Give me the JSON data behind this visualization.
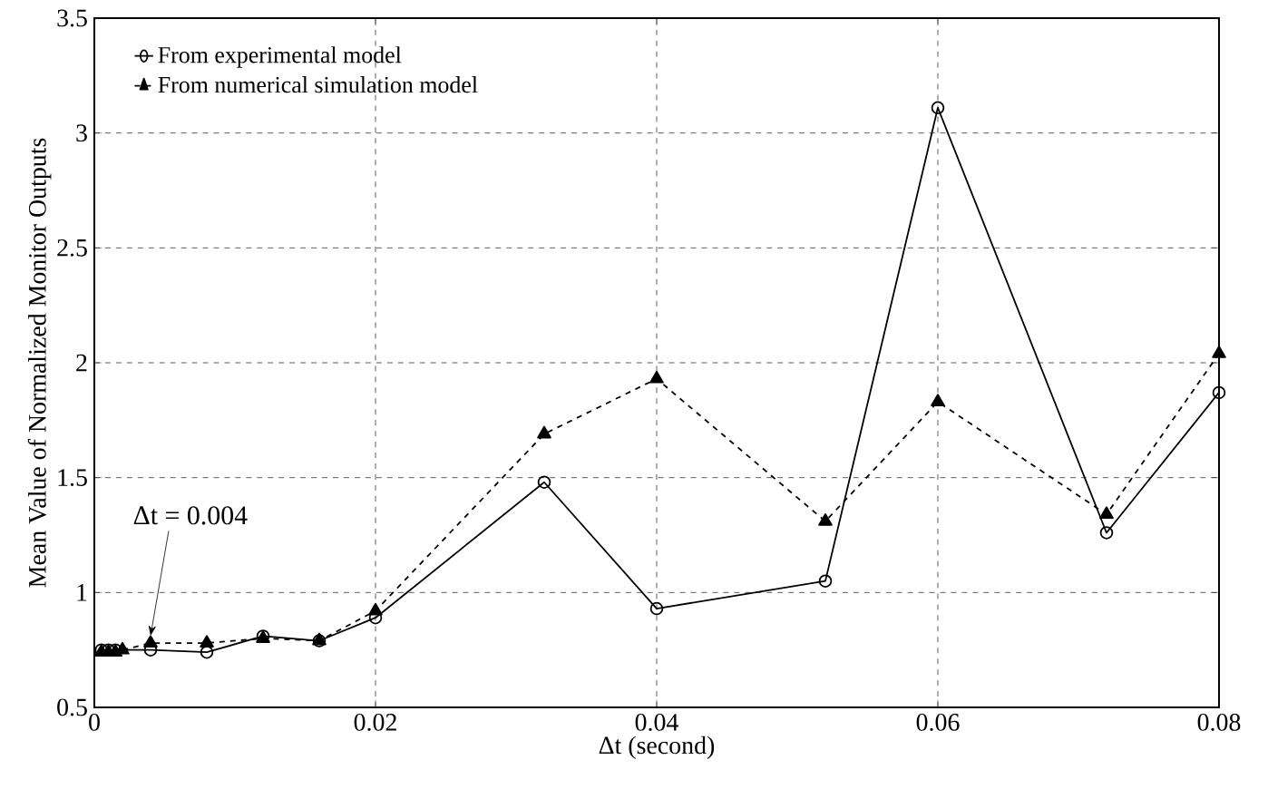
{
  "chart_data": {
    "type": "line",
    "xlabel": "Δt (second)",
    "ylabel": "Mean Value of Normalized Monitor Outputs",
    "xlim": [
      0,
      0.08
    ],
    "ylim": [
      0.5,
      3.5
    ],
    "xticks": [
      0,
      0.02,
      0.04,
      0.06,
      0.08
    ],
    "yticks": [
      0.5,
      1,
      1.5,
      2,
      2.5,
      3,
      3.5
    ],
    "grid": true,
    "legend": "top left",
    "x": [
      0.0005,
      0.001,
      0.0015,
      0.002,
      0.004,
      0.008,
      0.012,
      0.016,
      0.02,
      0.032,
      0.04,
      0.052,
      0.06,
      0.072,
      0.08
    ],
    "series": [
      {
        "name": "From experimental model",
        "color": "#000000",
        "marker": "circle",
        "line_style": "solid",
        "values": [
          0.75,
          0.75,
          0.75,
          null,
          0.75,
          0.74,
          0.81,
          0.79,
          0.89,
          1.48,
          0.93,
          1.05,
          3.11,
          1.26,
          1.87
        ]
      },
      {
        "name": "From numerical simulation model",
        "color": "#000000",
        "marker": "triangle",
        "line_style": "dashed",
        "values": [
          0.74,
          0.74,
          0.74,
          0.75,
          0.78,
          0.78,
          0.8,
          0.79,
          0.92,
          1.69,
          1.93,
          1.31,
          1.83,
          1.34,
          2.04
        ]
      }
    ],
    "annotations": [
      {
        "text": "Δt = 0.004",
        "x": 0.004,
        "y": 0.78
      }
    ]
  }
}
